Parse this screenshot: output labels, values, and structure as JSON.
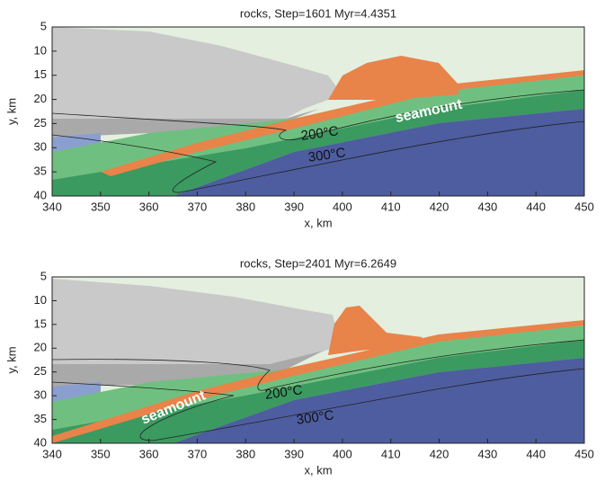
{
  "chart_data": [
    {
      "type": "image",
      "title": "rocks, Step=1601 Myr=4.4351",
      "x_label": "x, km",
      "y_label": "y, km",
      "xlim": [
        340,
        450
      ],
      "ylim": [
        5,
        40
      ],
      "y_reversed": true,
      "xticks": [
        340,
        350,
        360,
        370,
        380,
        390,
        400,
        410,
        420,
        430,
        440,
        450
      ],
      "yticks": [
        5,
        10,
        15,
        20,
        25,
        30,
        35,
        40
      ],
      "annotations": [
        "200°C",
        "300°C",
        "seamount"
      ]
    },
    {
      "type": "image",
      "title": "rocks, Step=2401 Myr=6.2649",
      "x_label": "x, km",
      "y_label": "y, km",
      "xlim": [
        340,
        450
      ],
      "ylim": [
        5,
        40
      ],
      "y_reversed": true,
      "xticks": [
        340,
        350,
        360,
        370,
        380,
        390,
        400,
        410,
        420,
        430,
        440,
        450
      ],
      "yticks": [
        5,
        10,
        15,
        20,
        25,
        30,
        35,
        40
      ],
      "annotations": [
        "200°C",
        "300°C",
        "seamount"
      ]
    }
  ]
}
